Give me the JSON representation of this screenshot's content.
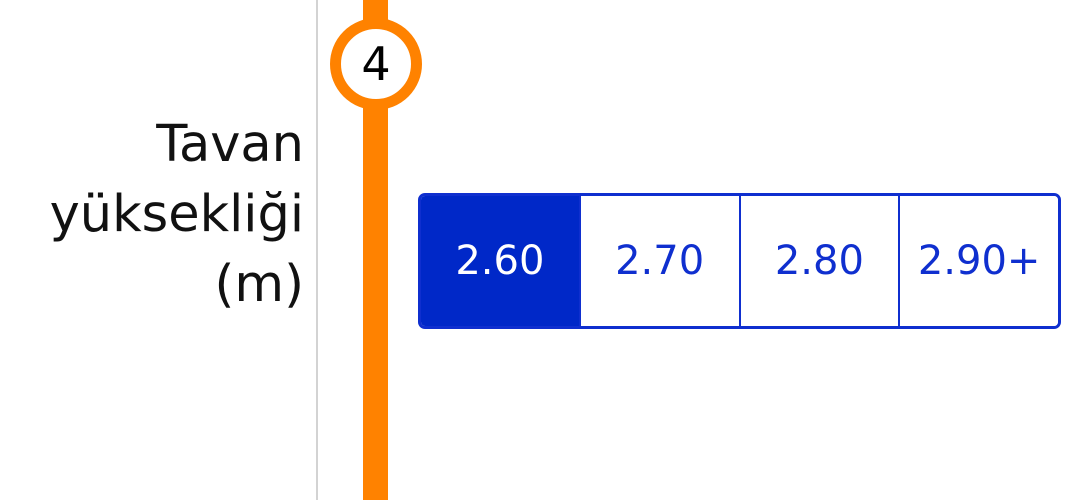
{
  "step": {
    "number": "4",
    "accent_color": "#ff8200"
  },
  "field": {
    "label_lines": [
      "Tavan",
      "yüksekliği",
      "(m)"
    ]
  },
  "ceiling_height": {
    "options": [
      "2.60",
      "2.70",
      "2.80",
      "2.90+"
    ],
    "selected": "2.60",
    "selected_color": "#0028c8",
    "border_color": "#0f2fcf"
  }
}
